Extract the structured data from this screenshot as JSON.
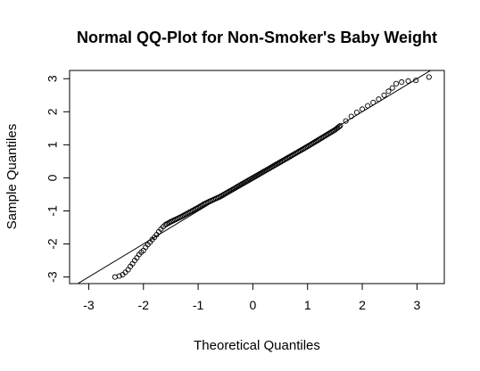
{
  "chart_data": {
    "type": "scatter",
    "title": "Normal QQ-Plot for Non-Smoker's Baby Weight",
    "xlabel": "Theoretical Quantiles",
    "ylabel": "Sample Quantiles",
    "xlim": [
      -3.35,
      3.5
    ],
    "ylim": [
      -3.2,
      3.25
    ],
    "xticks": [
      "-3",
      "-2",
      "-1",
      "0",
      "1",
      "2",
      "3"
    ],
    "yticks": [
      "-3",
      "-2",
      "-1",
      "0",
      "1",
      "2",
      "3"
    ],
    "grid": false,
    "legend": "none",
    "reference_line": {
      "slope": 1.0,
      "intercept": 0.0
    },
    "points": [
      [
        -2.52,
        -3.0
      ],
      [
        -2.44,
        -2.97
      ],
      [
        -2.38,
        -2.93
      ],
      [
        -2.33,
        -2.86
      ],
      [
        -2.28,
        -2.78
      ],
      [
        -2.24,
        -2.68
      ],
      [
        -2.2,
        -2.6
      ],
      [
        -2.16,
        -2.5
      ],
      [
        -2.12,
        -2.42
      ],
      [
        -2.08,
        -2.32
      ],
      [
        -2.04,
        -2.25
      ],
      [
        -2.0,
        -2.2
      ],
      [
        -1.96,
        -2.1
      ],
      [
        -1.92,
        -2.02
      ],
      [
        -1.88,
        -1.95
      ],
      [
        -1.84,
        -1.87
      ],
      [
        -1.8,
        -1.8
      ],
      [
        -1.76,
        -1.72
      ],
      [
        -1.72,
        -1.63
      ],
      [
        -1.68,
        -1.55
      ],
      [
        -1.64,
        -1.48
      ],
      [
        -1.6,
        -1.42
      ],
      [
        -1.5,
        -1.33
      ],
      [
        -1.4,
        -1.25
      ],
      [
        -1.3,
        -1.17
      ],
      [
        -1.2,
        -1.08
      ],
      [
        -1.1,
        -0.99
      ],
      [
        -1.0,
        -0.9
      ],
      [
        -0.9,
        -0.8
      ],
      [
        -0.8,
        -0.72
      ],
      [
        -0.6,
        -0.57
      ],
      [
        -0.4,
        -0.38
      ],
      [
        -0.2,
        -0.19
      ],
      [
        0.0,
        0.0
      ],
      [
        0.2,
        0.19
      ],
      [
        0.4,
        0.38
      ],
      [
        0.6,
        0.57
      ],
      [
        0.8,
        0.76
      ],
      [
        1.0,
        0.95
      ],
      [
        1.2,
        1.15
      ],
      [
        1.35,
        1.3
      ],
      [
        1.5,
        1.45
      ],
      [
        1.6,
        1.58
      ],
      [
        1.7,
        1.72
      ],
      [
        1.8,
        1.86
      ],
      [
        1.9,
        1.98
      ],
      [
        2.0,
        2.08
      ],
      [
        2.1,
        2.18
      ],
      [
        2.2,
        2.28
      ],
      [
        2.3,
        2.38
      ],
      [
        2.4,
        2.5
      ],
      [
        2.48,
        2.62
      ],
      [
        2.55,
        2.72
      ],
      [
        2.62,
        2.85
      ],
      [
        2.72,
        2.9
      ],
      [
        2.84,
        2.93
      ],
      [
        2.98,
        2.95
      ],
      [
        3.22,
        3.05
      ]
    ]
  }
}
